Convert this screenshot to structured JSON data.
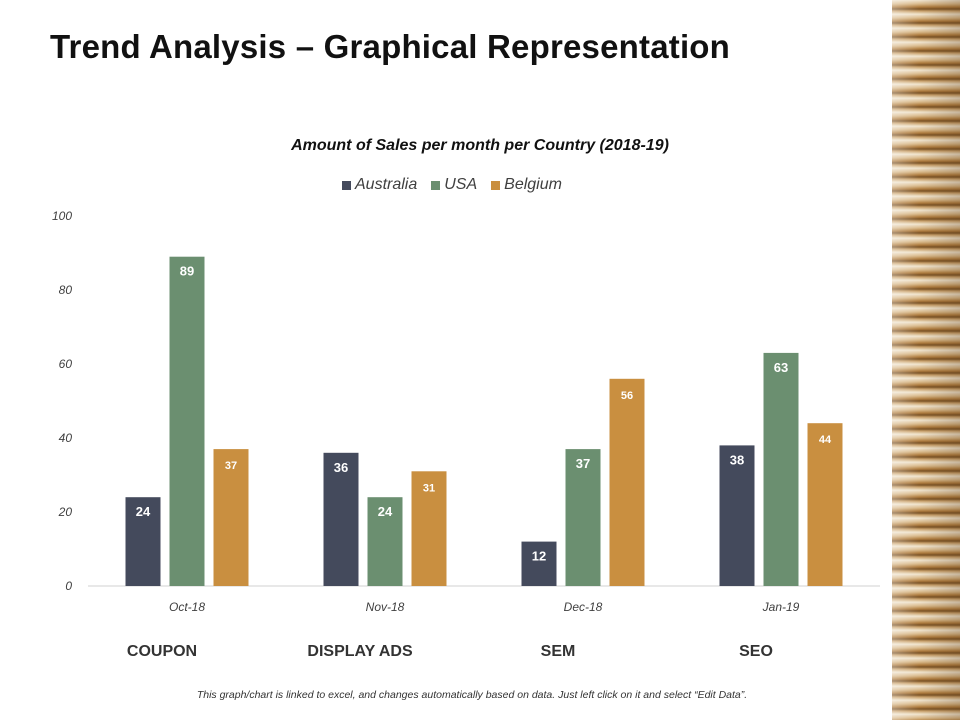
{
  "page": {
    "title": "Trend Analysis – Graphical Representation",
    "footnote": "This graph/chart is linked to excel, and changes automatically  based on data.  Just left click on it and select “Edit Data”."
  },
  "category_labels": [
    "COUPON",
    "DISPLAY ADS",
    "SEM",
    "SEO"
  ],
  "chart_data": {
    "type": "bar",
    "title": "Amount of Sales per month per Country (2018-19)",
    "categories": [
      "Oct-18",
      "Nov-18",
      "Dec-18",
      "Jan-19"
    ],
    "series": [
      {
        "name": "Australia",
        "color": "#444a5c",
        "values": [
          24,
          36,
          12,
          38
        ]
      },
      {
        "name": "USA",
        "color": "#6b8f70",
        "values": [
          89,
          24,
          37,
          63
        ]
      },
      {
        "name": "Belgium",
        "color": "#c98f40",
        "values": [
          37,
          31,
          56,
          44
        ]
      }
    ],
    "ylim": [
      0,
      100
    ],
    "yticks": [
      0,
      20,
      40,
      60,
      80,
      100
    ],
    "legend": "top-center",
    "grid": false,
    "xlabel": "",
    "ylabel": ""
  }
}
